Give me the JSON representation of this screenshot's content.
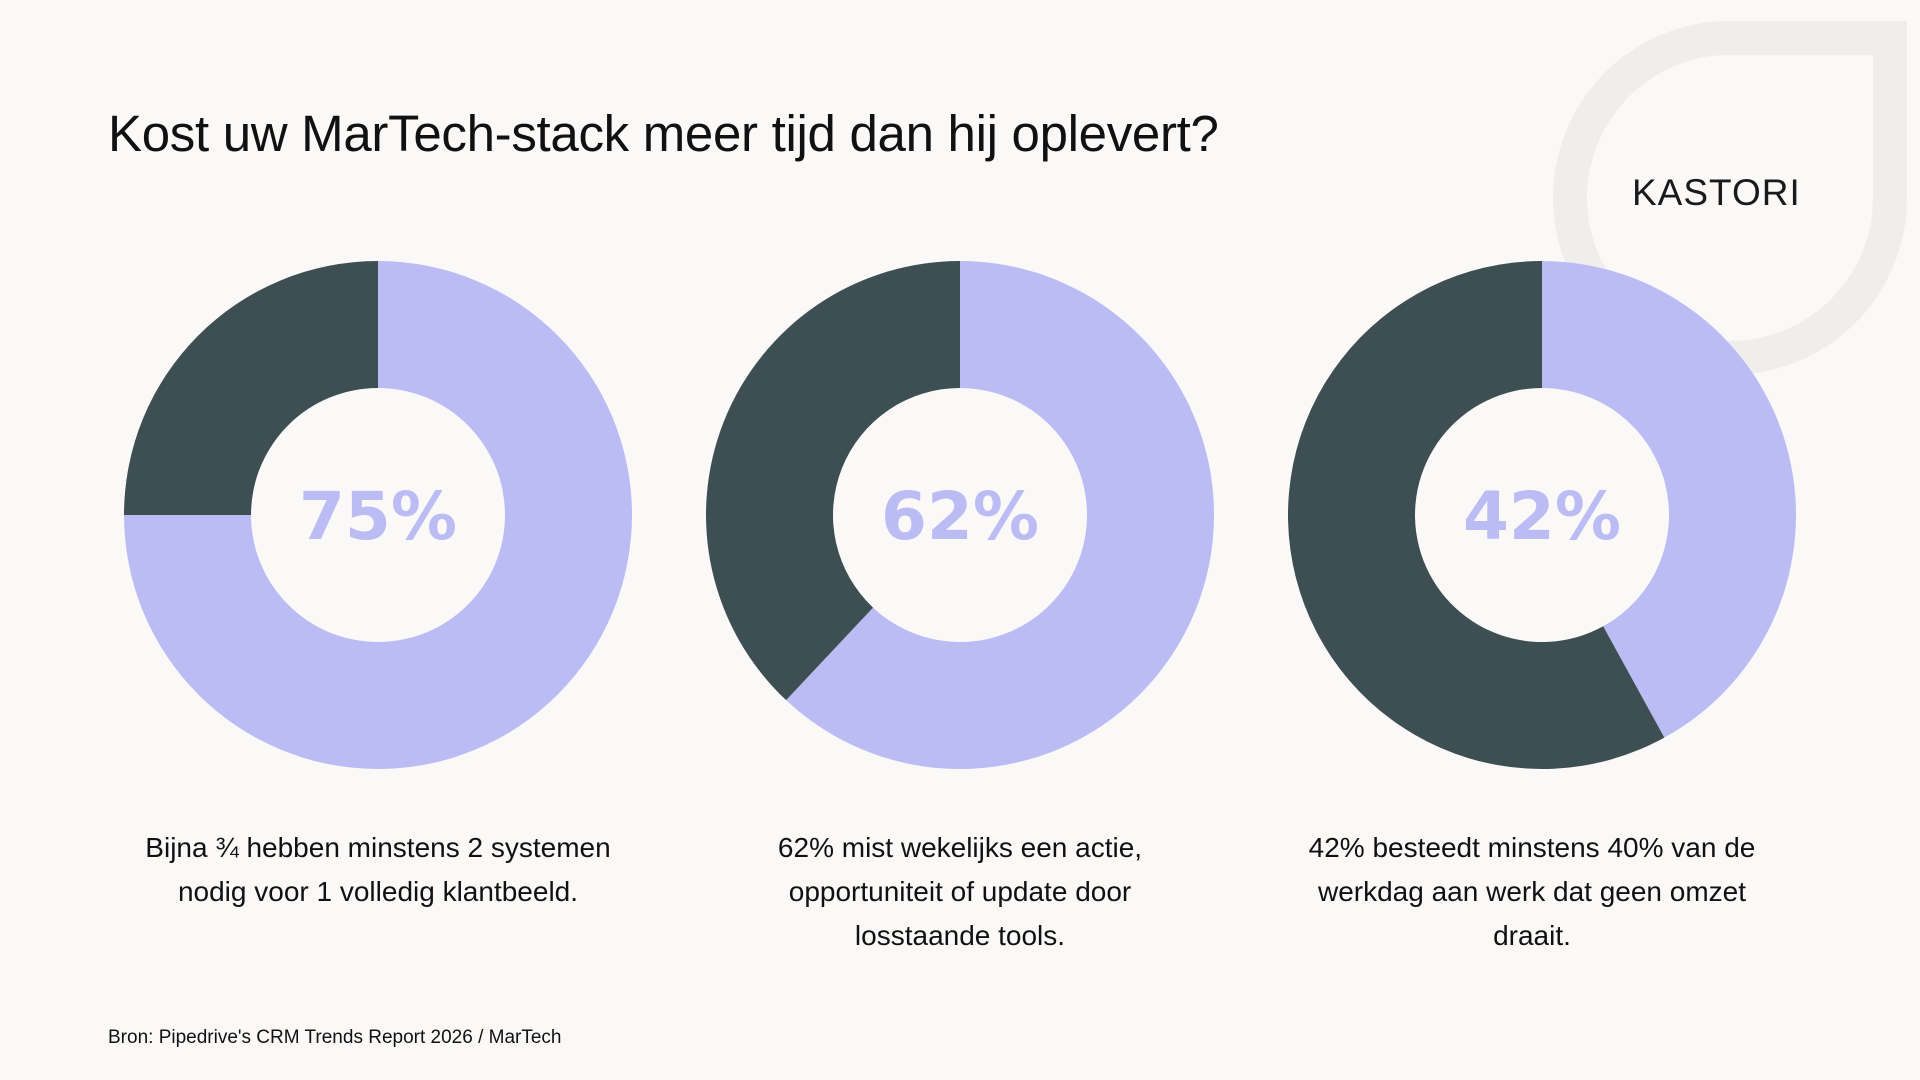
{
  "title": "Kost uw MarTech-stack meer tijd dan hij oplevert?",
  "logo": "KASTORI",
  "source": "Bron: Pipedrive's CRM Trends Report 2026 / MarTech",
  "colors": {
    "primary": "#bbbcf3",
    "secondary": "#3d4f52",
    "background": "#faf9f7",
    "decoration": "#efeeec"
  },
  "chart_data": [
    {
      "type": "pie",
      "center_label": "75%",
      "values": [
        75,
        25
      ],
      "caption": [
        "Bijna ¾ hebben minstens 2 systemen",
        "nodig voor 1 volledig klantbeeld."
      ]
    },
    {
      "type": "pie",
      "center_label": "62%",
      "values": [
        62,
        38
      ],
      "caption": [
        "62% mist wekelijks een actie,",
        "opportuniteit of update door",
        "losstaande tools."
      ]
    },
    {
      "type": "pie",
      "center_label": "42%",
      "values": [
        42,
        58
      ],
      "caption": [
        "42% besteedt minstens 40% van de",
        "werkdag aan werk dat geen omzet",
        "draait."
      ]
    }
  ]
}
